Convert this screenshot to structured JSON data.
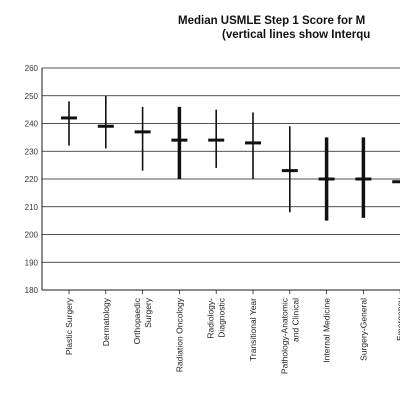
{
  "chart_data": {
    "type": "range",
    "title": "Median USMLE Step 1 Score for M",
    "subtitle": "(vertical lines show Interqu",
    "xlabel": "",
    "ylabel": "",
    "ylim": [
      180,
      260
    ],
    "yticks": [
      180,
      190,
      200,
      210,
      220,
      230,
      240,
      250,
      260
    ],
    "grid": "horizontal",
    "categories": [
      [
        "Plastic Surgery"
      ],
      [
        "Dermatology"
      ],
      [
        "Orthopaedic",
        "Surgery"
      ],
      [
        "Radiation Oncology"
      ],
      [
        "Radiology-",
        "Diagnostic"
      ],
      [
        "Transitional Year"
      ],
      [
        "Pathology-Anatomic",
        "and Clinical"
      ],
      [
        "Internal Medicine"
      ],
      [
        "Surgery-General"
      ],
      [
        "Emergency"
      ]
    ],
    "series": [
      {
        "median": [
          242,
          239,
          237,
          234,
          234,
          233,
          223,
          220,
          220,
          219
        ],
        "q1": [
          232,
          231,
          223,
          220,
          224,
          220,
          208,
          205,
          206,
          219
        ],
        "q3": [
          248,
          250,
          246,
          246,
          245,
          244,
          239,
          235,
          235,
          219
        ],
        "thick": [
          false,
          false,
          false,
          true,
          false,
          false,
          false,
          true,
          true,
          false
        ]
      }
    ]
  }
}
